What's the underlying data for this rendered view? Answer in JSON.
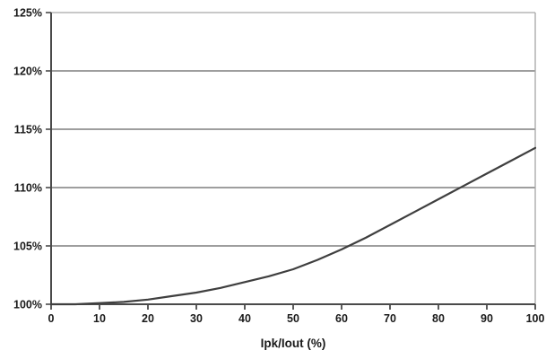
{
  "page": {
    "background": "#ffffff"
  },
  "chart_data": {
    "type": "line",
    "title": "",
    "xlabel": "Ipk/Iout (%)",
    "ylabel": "",
    "xlim": [
      0,
      100
    ],
    "ylim": [
      100,
      125
    ],
    "grid": true,
    "legend": false,
    "x_tick_values": [
      0,
      10,
      20,
      30,
      40,
      50,
      60,
      70,
      80,
      90,
      100
    ],
    "x_tick_labels": [
      "0",
      "10",
      "20",
      "30",
      "40",
      "50",
      "60",
      "70",
      "80",
      "90",
      "100"
    ],
    "y_tick_values": [
      100,
      105,
      110,
      115,
      120,
      125
    ],
    "y_tick_labels": [
      "100%",
      "105%",
      "110%",
      "115%",
      "120%",
      "125%"
    ],
    "colors": {
      "curve": "#3f3f3f",
      "gridline": "#7f7f7f",
      "axis": "#4a4a4a",
      "plot_border": "#a6a6a6",
      "text": "#1a1a1a",
      "background": "#ffffff"
    },
    "series": [
      {
        "name": "Ipk/Iout curve",
        "x": [
          0,
          5,
          10,
          15,
          20,
          25,
          30,
          35,
          40,
          45,
          50,
          55,
          60,
          65,
          70,
          75,
          80,
          85,
          90,
          95,
          100
        ],
        "y": [
          100.0,
          100.0,
          100.1,
          100.2,
          100.4,
          100.7,
          101.0,
          101.4,
          101.9,
          102.4,
          103.0,
          103.8,
          104.7,
          105.7,
          106.8,
          107.9,
          109.0,
          110.1,
          111.2,
          112.3,
          113.4
        ]
      }
    ]
  }
}
